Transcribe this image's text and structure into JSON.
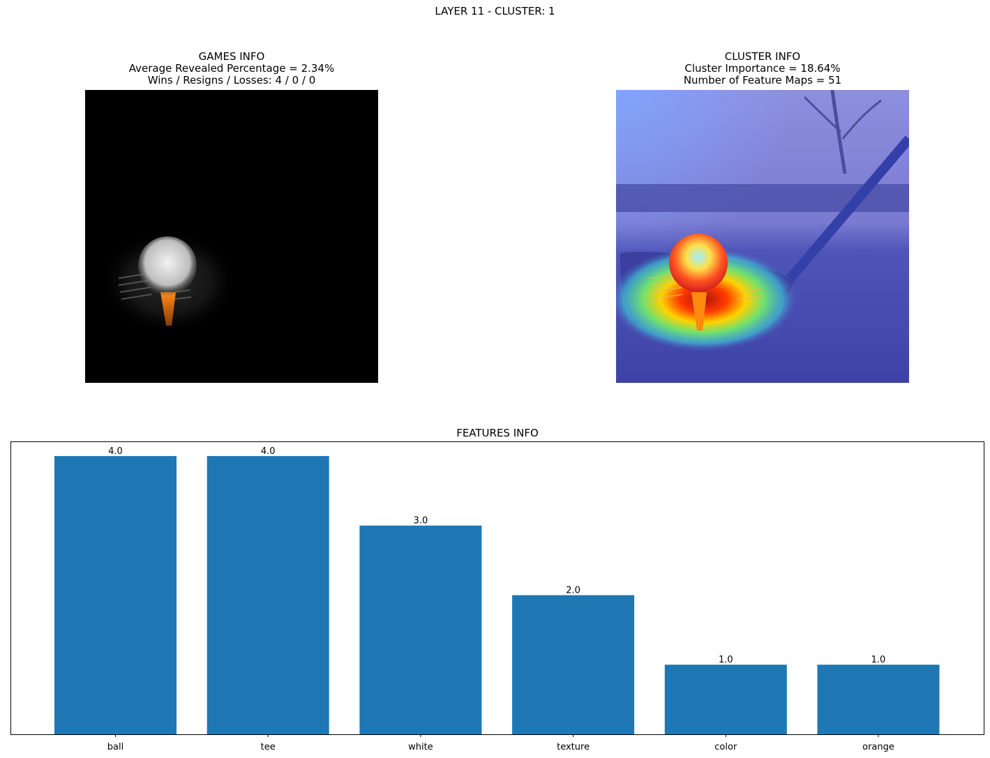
{
  "figure": {
    "suptitle": "LAYER 11 - CLUSTER: 1"
  },
  "games_panel": {
    "title_lines": [
      "GAMES INFO",
      "Average Revealed Percentage = 2.34%",
      "Wins / Resigns / Losses: 4 / 0 / 0"
    ]
  },
  "cluster_panel": {
    "title_lines": [
      "CLUSTER INFO",
      "Cluster Importance = 18.64%",
      "Number of Feature Maps = 51"
    ]
  },
  "chart_data": {
    "type": "bar",
    "title": "FEATURES INFO",
    "categories": [
      "ball",
      "tee",
      "white",
      "texture",
      "color",
      "orange"
    ],
    "values": [
      4.0,
      4.0,
      3.0,
      2.0,
      1.0,
      1.0
    ],
    "value_labels": [
      "4.0",
      "4.0",
      "3.0",
      "2.0",
      "1.0",
      "1.0"
    ],
    "ylim": [
      0,
      4.2
    ],
    "bar_color": "#1f77b4",
    "yaxis_visible": false,
    "grid": false
  },
  "colors": {
    "bar": "#1f77b4",
    "axes_edge": "#000000",
    "background": "#ffffff"
  }
}
